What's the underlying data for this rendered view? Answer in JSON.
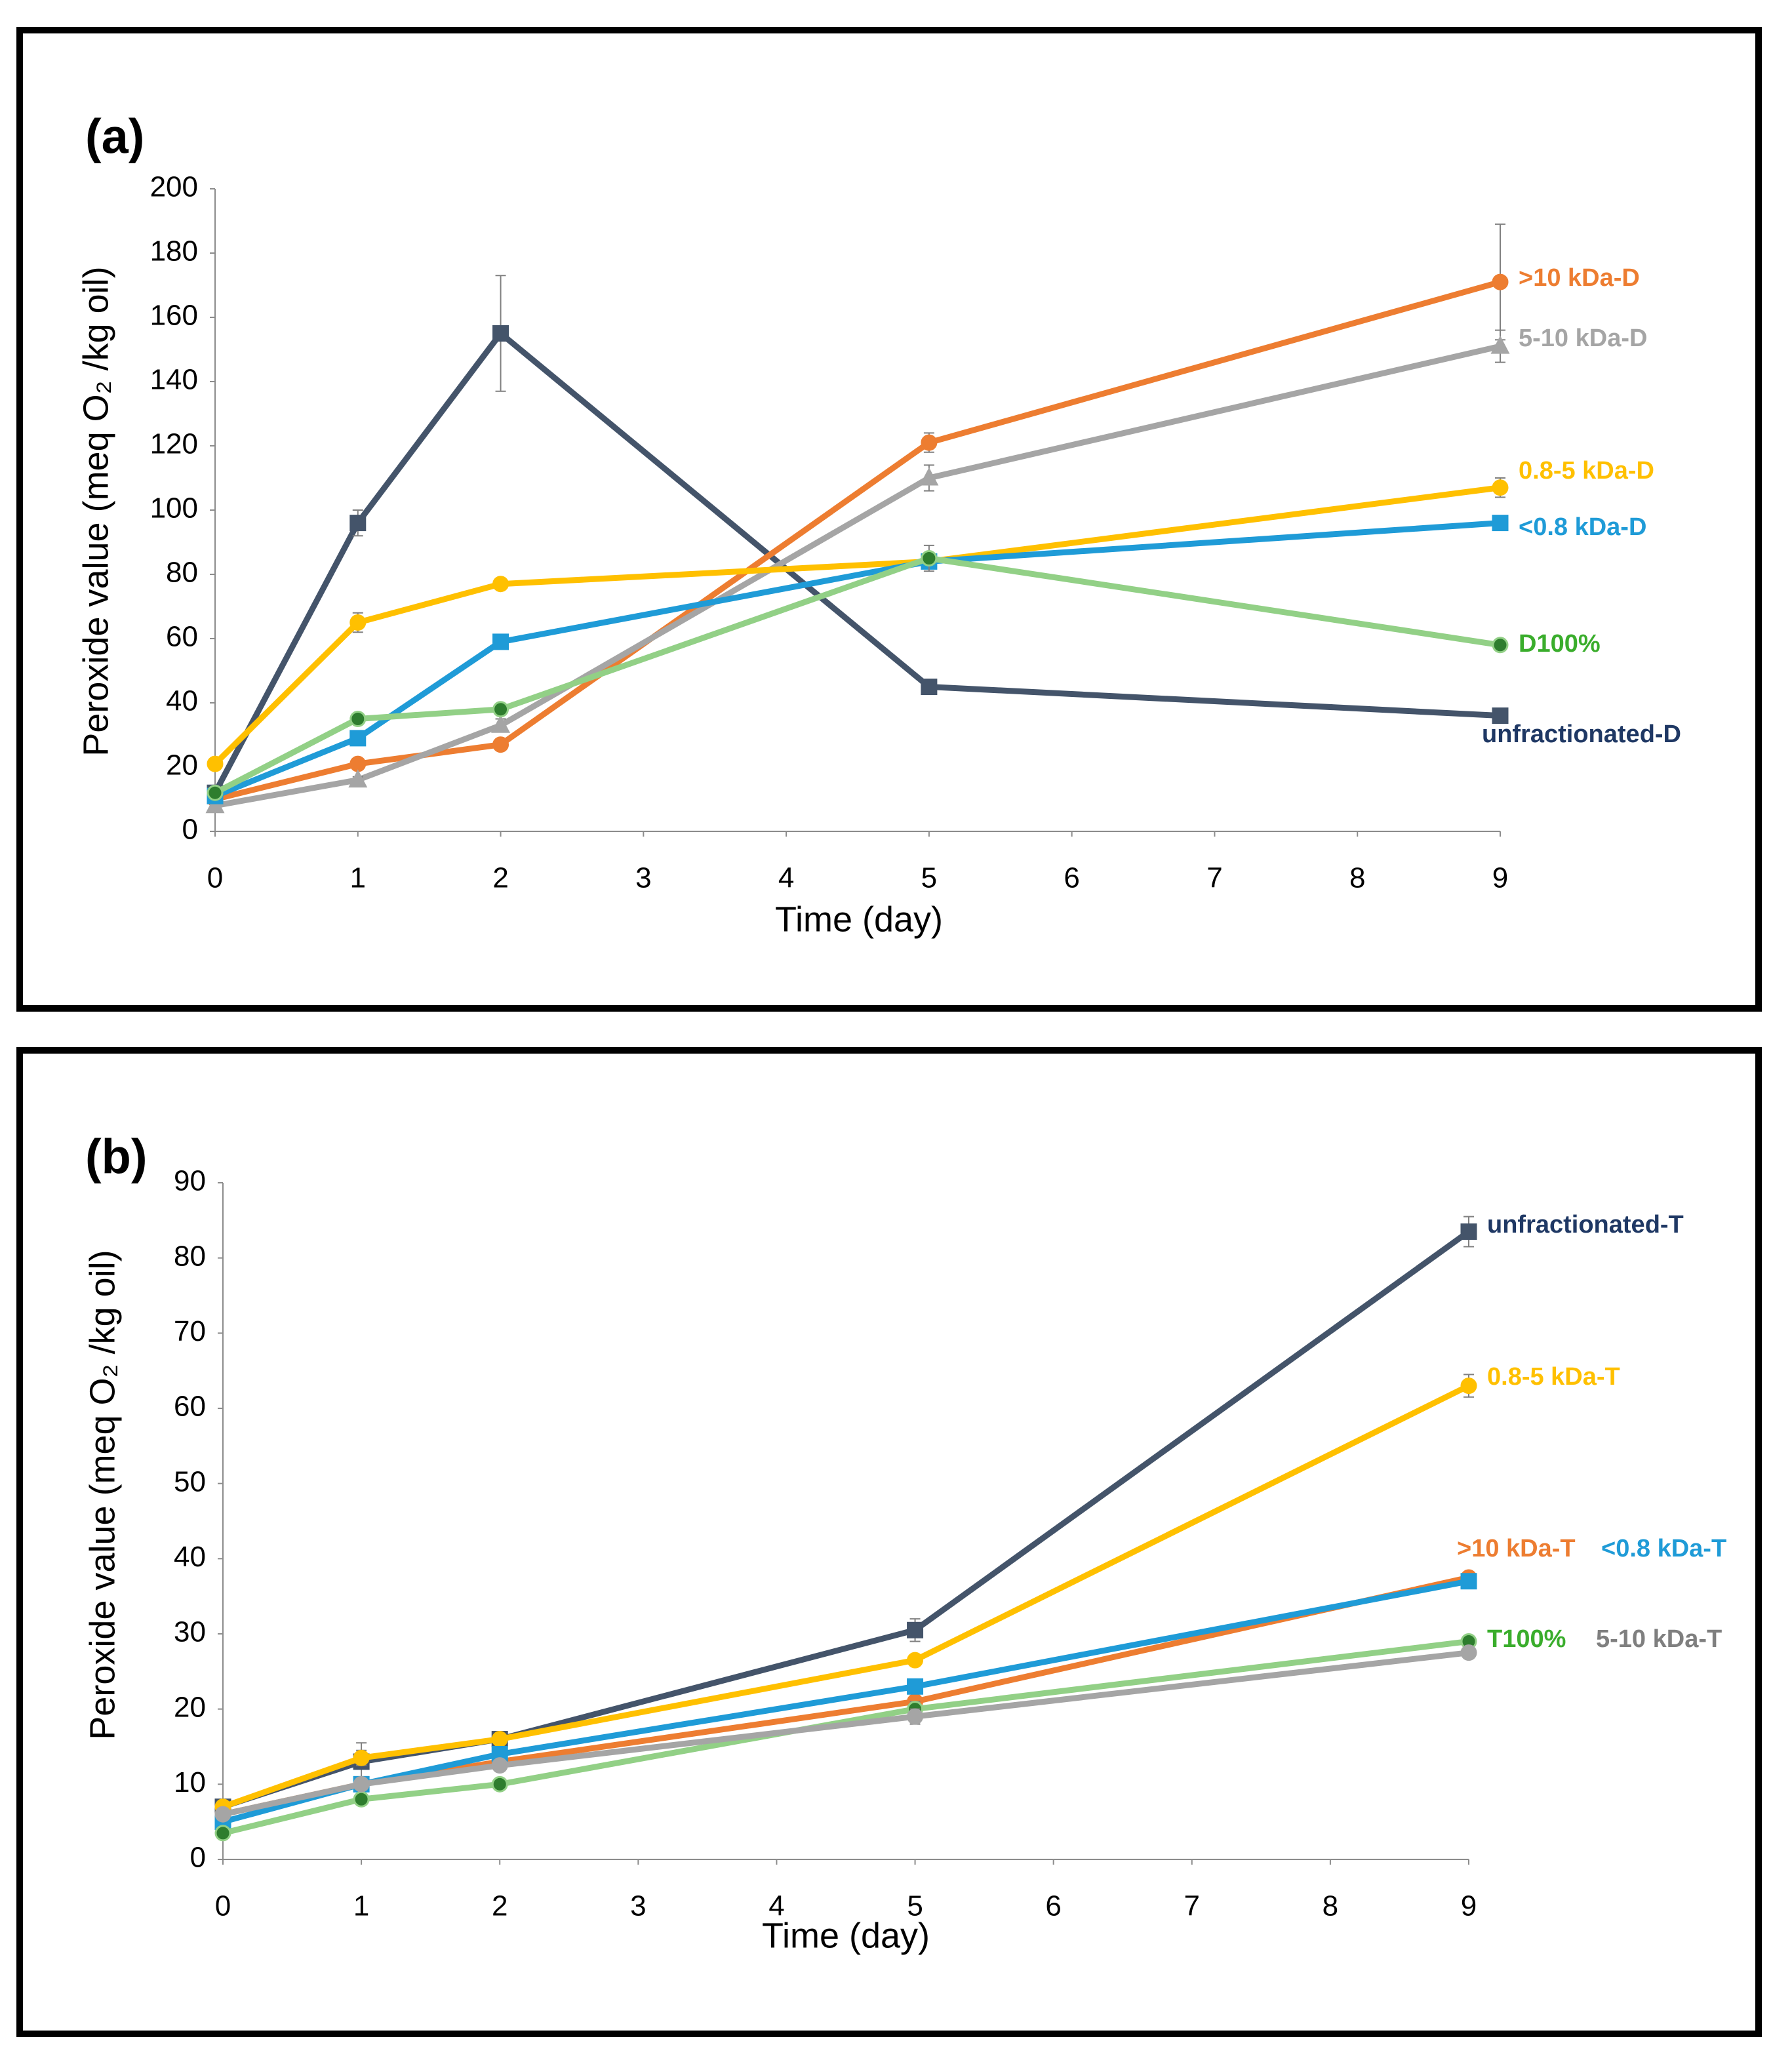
{
  "chart_data": [
    {
      "type": "line",
      "panel": "(a)",
      "xlabel": "Time (day)",
      "ylabel": "Peroxide value (meq O₂ /kg oil)",
      "x": [
        0,
        1,
        2,
        5,
        9
      ],
      "xlim": [
        0,
        9
      ],
      "xticks": [
        0,
        1,
        2,
        3,
        4,
        5,
        6,
        7,
        8,
        9
      ],
      "ylim": [
        0,
        200
      ],
      "yticks": [
        0,
        20,
        40,
        60,
        80,
        100,
        120,
        140,
        160,
        180,
        200
      ],
      "series": [
        {
          "name": "unfractionated-D",
          "color": "#44546a",
          "label_color": "#1f3864",
          "marker": "square",
          "values": [
            12,
            96,
            155,
            45,
            36
          ],
          "errors": [
            1,
            4,
            18,
            1,
            1
          ]
        },
        {
          "name": ">10 kDa-D",
          "color": "#ed7d31",
          "marker": "circle",
          "values": [
            10,
            21,
            27,
            121,
            171
          ],
          "errors": [
            1,
            1,
            1,
            3,
            18
          ]
        },
        {
          "name": "5-10 kDa-D",
          "color": "#a5a5a5",
          "marker": "triangle",
          "values": [
            8,
            16,
            33,
            110,
            151
          ],
          "errors": [
            1,
            1,
            2,
            4,
            5
          ]
        },
        {
          "name": "0.8-5 kDa-D",
          "color": "#ffc000",
          "marker": "circle",
          "values": [
            21,
            65,
            77,
            84,
            107
          ],
          "errors": [
            1,
            3,
            1,
            2,
            3
          ]
        },
        {
          "name": "<0.8 kDa-D",
          "color": "#1f9bd7",
          "marker": "square",
          "values": [
            11,
            29,
            59,
            84,
            96
          ],
          "errors": [
            1,
            1,
            1,
            2,
            2
          ]
        },
        {
          "name": "D100%",
          "color": "#92d086",
          "label_color": "#3aad2c",
          "marker_color": "#2e7d2e",
          "marker": "circle",
          "values": [
            12,
            35,
            38,
            85,
            58
          ],
          "errors": [
            1,
            1,
            1,
            4,
            1
          ]
        }
      ]
    },
    {
      "type": "line",
      "panel": "(b)",
      "xlabel": "Time (day)",
      "ylabel": "Peroxide value (meq O₂ /kg oil)",
      "x": [
        0,
        1,
        2,
        5,
        9
      ],
      "xlim": [
        0,
        9
      ],
      "xticks": [
        0,
        1,
        2,
        3,
        4,
        5,
        6,
        7,
        8,
        9
      ],
      "ylim": [
        0,
        90
      ],
      "yticks": [
        0,
        10,
        20,
        30,
        40,
        50,
        60,
        70,
        80,
        90
      ],
      "series": [
        {
          "name": "unfractionated-T",
          "color": "#44546a",
          "label_color": "#1f3864",
          "marker": "square",
          "values": [
            7,
            13,
            16,
            30.5,
            83.5
          ],
          "errors": [
            0.5,
            2.5,
            0.5,
            1.5,
            2
          ]
        },
        {
          "name": "0.8-5 kDa-T",
          "color": "#ffc000",
          "marker": "circle",
          "values": [
            7,
            13.5,
            16,
            26.5,
            63
          ],
          "errors": [
            0.5,
            1,
            0.5,
            0.5,
            1.5
          ]
        },
        {
          "name": ">10 kDa-T",
          "color": "#ed7d31",
          "marker": "circle",
          "values": [
            6,
            10,
            13,
            21,
            37.5
          ],
          "errors": [
            0.5,
            0.5,
            0.5,
            0.5,
            0.5
          ]
        },
        {
          "name": "<0.8 kDa-T",
          "color": "#1f9bd7",
          "marker": "square",
          "values": [
            5,
            10,
            14,
            23,
            37
          ],
          "errors": [
            0.5,
            0.5,
            0.5,
            0.5,
            0.5
          ]
        },
        {
          "name": "T100%",
          "color": "#92d086",
          "label_color": "#3aad2c",
          "marker_color": "#2e7d2e",
          "marker": "circle",
          "values": [
            3.5,
            8,
            10,
            20,
            29
          ],
          "errors": [
            0.3,
            0.5,
            0.5,
            1,
            0.5
          ]
        },
        {
          "name": "5-10 kDa-T",
          "color": "#a5a5a5",
          "label_color": "#7f7f7f",
          "marker": "circle",
          "values": [
            6,
            10,
            12.5,
            19,
            27.5
          ],
          "errors": [
            0.5,
            0.5,
            0.5,
            1,
            0.5
          ]
        }
      ]
    }
  ]
}
